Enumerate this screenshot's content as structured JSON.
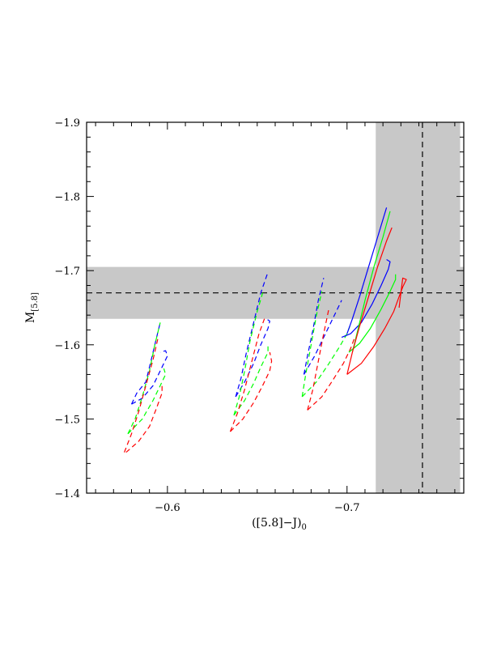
{
  "chart_data": {
    "type": "line",
    "x_axis": {
      "label_main": "([5.8]−J)",
      "label_sub": "0",
      "range": [
        -0.555,
        -0.765
      ],
      "ticks": [
        -0.6,
        -0.7
      ],
      "tick_labels": [
        "−0.6",
        "−0.7"
      ]
    },
    "y_axis": {
      "label_main": "M",
      "label_sub": "[5.8]",
      "range": [
        -1.4,
        -1.9
      ],
      "ticks": [
        -1.4,
        -1.5,
        -1.6,
        -1.7,
        -1.8,
        -1.9
      ],
      "tick_labels": [
        "−1.4",
        "−1.5",
        "−1.6",
        "−1.7",
        "−1.8",
        "−1.9"
      ]
    },
    "grid": false,
    "observed": {
      "x": -0.742,
      "y": -1.67,
      "x_band": [
        -0.716,
        -0.763
      ],
      "y_band": [
        -1.635,
        -1.705
      ],
      "band_color": "#c8c8c8"
    },
    "colors": {
      "blue": "#0000ff",
      "green": "#00ff00",
      "red": "#ff0000"
    },
    "series": [
      {
        "color": "blue",
        "style": "dashed",
        "points": [
          [
            -0.58,
            -1.52
          ],
          [
            -0.583,
            -1.535
          ],
          [
            -0.588,
            -1.55
          ],
          [
            -0.591,
            -1.58
          ],
          [
            -0.594,
            -1.61
          ],
          [
            -0.596,
            -1.63
          ]
        ]
      },
      {
        "color": "blue",
        "style": "dashed",
        "points": [
          [
            -0.58,
            -1.52
          ],
          [
            -0.586,
            -1.528
          ],
          [
            -0.592,
            -1.545
          ],
          [
            -0.596,
            -1.565
          ],
          [
            -0.6,
            -1.585
          ],
          [
            -0.599,
            -1.592
          ],
          [
            -0.596,
            -1.59
          ]
        ]
      },
      {
        "color": "green",
        "style": "dashed",
        "points": [
          [
            -0.578,
            -1.48
          ],
          [
            -0.582,
            -1.5
          ],
          [
            -0.586,
            -1.53
          ],
          [
            -0.59,
            -1.565
          ],
          [
            -0.593,
            -1.6
          ],
          [
            -0.596,
            -1.63
          ]
        ]
      },
      {
        "color": "green",
        "style": "dashed",
        "points": [
          [
            -0.578,
            -1.48
          ],
          [
            -0.586,
            -1.5
          ],
          [
            -0.592,
            -1.525
          ],
          [
            -0.596,
            -1.545
          ],
          [
            -0.599,
            -1.56
          ],
          [
            -0.598,
            -1.568
          ]
        ]
      },
      {
        "color": "red",
        "style": "dashed",
        "points": [
          [
            -0.576,
            -1.455
          ],
          [
            -0.58,
            -1.48
          ],
          [
            -0.584,
            -1.51
          ],
          [
            -0.588,
            -1.545
          ],
          [
            -0.592,
            -1.58
          ],
          [
            -0.595,
            -1.612
          ]
        ]
      },
      {
        "color": "red",
        "style": "dashed",
        "points": [
          [
            -0.577,
            -1.455
          ],
          [
            -0.584,
            -1.47
          ],
          [
            -0.59,
            -1.49
          ],
          [
            -0.594,
            -1.515
          ],
          [
            -0.597,
            -1.535
          ],
          [
            -0.597,
            -1.545
          ]
        ]
      },
      {
        "color": "blue",
        "style": "dashed",
        "points": [
          [
            -0.638,
            -1.53
          ],
          [
            -0.641,
            -1.555
          ],
          [
            -0.644,
            -1.59
          ],
          [
            -0.648,
            -1.63
          ],
          [
            -0.652,
            -1.67
          ],
          [
            -0.656,
            -1.698
          ]
        ]
      },
      {
        "color": "blue",
        "style": "dashed",
        "points": [
          [
            -0.638,
            -1.53
          ],
          [
            -0.643,
            -1.55
          ],
          [
            -0.648,
            -1.575
          ],
          [
            -0.652,
            -1.6
          ],
          [
            -0.656,
            -1.622
          ],
          [
            -0.657,
            -1.632
          ],
          [
            -0.655,
            -1.635
          ]
        ]
      },
      {
        "color": "green",
        "style": "dashed",
        "points": [
          [
            -0.637,
            -1.505
          ],
          [
            -0.64,
            -1.53
          ],
          [
            -0.643,
            -1.565
          ],
          [
            -0.646,
            -1.605
          ],
          [
            -0.65,
            -1.645
          ],
          [
            -0.653,
            -1.67
          ]
        ]
      },
      {
        "color": "green",
        "style": "dashed",
        "points": [
          [
            -0.637,
            -1.505
          ],
          [
            -0.643,
            -1.525
          ],
          [
            -0.648,
            -1.548
          ],
          [
            -0.652,
            -1.57
          ],
          [
            -0.656,
            -1.59
          ],
          [
            -0.656,
            -1.6
          ]
        ]
      },
      {
        "color": "red",
        "style": "dashed",
        "points": [
          [
            -0.635,
            -1.483
          ],
          [
            -0.639,
            -1.508
          ],
          [
            -0.643,
            -1.54
          ],
          [
            -0.647,
            -1.578
          ],
          [
            -0.651,
            -1.615
          ],
          [
            -0.654,
            -1.635
          ]
        ]
      },
      {
        "color": "red",
        "style": "dashed",
        "points": [
          [
            -0.635,
            -1.483
          ],
          [
            -0.642,
            -1.5
          ],
          [
            -0.648,
            -1.522
          ],
          [
            -0.653,
            -1.545
          ],
          [
            -0.657,
            -1.565
          ],
          [
            -0.658,
            -1.578
          ],
          [
            -0.657,
            -1.59
          ]
        ]
      },
      {
        "color": "blue",
        "style": "dashed",
        "points": [
          [
            -0.676,
            -1.56
          ],
          [
            -0.678,
            -1.585
          ],
          [
            -0.681,
            -1.62
          ],
          [
            -0.684,
            -1.66
          ],
          [
            -0.687,
            -1.69
          ]
        ]
      },
      {
        "color": "blue",
        "style": "dashed",
        "points": [
          [
            -0.676,
            -1.56
          ],
          [
            -0.682,
            -1.585
          ],
          [
            -0.688,
            -1.615
          ],
          [
            -0.693,
            -1.64
          ],
          [
            -0.696,
            -1.655
          ],
          [
            -0.697,
            -1.66
          ]
        ]
      },
      {
        "color": "green",
        "style": "dashed",
        "points": [
          [
            -0.675,
            -1.53
          ],
          [
            -0.677,
            -1.56
          ],
          [
            -0.68,
            -1.6
          ],
          [
            -0.683,
            -1.64
          ],
          [
            -0.686,
            -1.672
          ]
        ]
      },
      {
        "color": "green",
        "style": "dashed",
        "points": [
          [
            -0.675,
            -1.53
          ],
          [
            -0.683,
            -1.55
          ],
          [
            -0.69,
            -1.575
          ],
          [
            -0.696,
            -1.598
          ],
          [
            -0.7,
            -1.615
          ],
          [
            -0.702,
            -1.628
          ]
        ]
      },
      {
        "color": "red",
        "style": "dashed",
        "points": [
          [
            -0.678,
            -1.512
          ],
          [
            -0.681,
            -1.54
          ],
          [
            -0.684,
            -1.578
          ],
          [
            -0.687,
            -1.615
          ],
          [
            -0.69,
            -1.65
          ]
        ]
      },
      {
        "color": "red",
        "style": "dashed",
        "points": [
          [
            -0.678,
            -1.512
          ],
          [
            -0.686,
            -1.53
          ],
          [
            -0.692,
            -1.552
          ],
          [
            -0.698,
            -1.575
          ],
          [
            -0.702,
            -1.595
          ],
          [
            -0.704,
            -1.608
          ]
        ]
      },
      {
        "color": "blue",
        "style": "solid",
        "points": [
          [
            -0.7,
            -1.615
          ],
          [
            -0.703,
            -1.635
          ],
          [
            -0.707,
            -1.665
          ],
          [
            -0.712,
            -1.705
          ],
          [
            -0.717,
            -1.745
          ],
          [
            -0.722,
            -1.785
          ]
        ]
      },
      {
        "color": "blue",
        "style": "solid",
        "points": [
          [
            -0.697,
            -1.61
          ],
          [
            -0.702,
            -1.615
          ],
          [
            -0.708,
            -1.63
          ],
          [
            -0.714,
            -1.655
          ],
          [
            -0.719,
            -1.68
          ],
          [
            -0.723,
            -1.702
          ],
          [
            -0.724,
            -1.712
          ],
          [
            -0.722,
            -1.715
          ]
        ]
      },
      {
        "color": "green",
        "style": "solid",
        "points": [
          [
            -0.703,
            -1.59
          ],
          [
            -0.706,
            -1.62
          ],
          [
            -0.71,
            -1.66
          ],
          [
            -0.715,
            -1.705
          ],
          [
            -0.72,
            -1.745
          ],
          [
            -0.724,
            -1.78
          ]
        ]
      },
      {
        "color": "green",
        "style": "solid",
        "points": [
          [
            -0.701,
            -1.59
          ],
          [
            -0.707,
            -1.602
          ],
          [
            -0.713,
            -1.622
          ],
          [
            -0.719,
            -1.648
          ],
          [
            -0.724,
            -1.672
          ],
          [
            -0.727,
            -1.688
          ],
          [
            -0.727,
            -1.695
          ]
        ]
      },
      {
        "color": "red",
        "style": "solid",
        "points": [
          [
            -0.7,
            -1.56
          ],
          [
            -0.703,
            -1.59
          ],
          [
            -0.707,
            -1.625
          ],
          [
            -0.712,
            -1.665
          ],
          [
            -0.717,
            -1.705
          ],
          [
            -0.722,
            -1.74
          ],
          [
            -0.725,
            -1.758
          ]
        ]
      },
      {
        "color": "red",
        "style": "solid",
        "points": [
          [
            -0.7,
            -1.56
          ],
          [
            -0.708,
            -1.575
          ],
          [
            -0.715,
            -1.598
          ],
          [
            -0.721,
            -1.622
          ],
          [
            -0.726,
            -1.645
          ],
          [
            -0.729,
            -1.665
          ],
          [
            -0.731,
            -1.678
          ],
          [
            -0.733,
            -1.688
          ],
          [
            -0.731,
            -1.69
          ],
          [
            -0.729,
            -1.65
          ]
        ]
      }
    ]
  }
}
